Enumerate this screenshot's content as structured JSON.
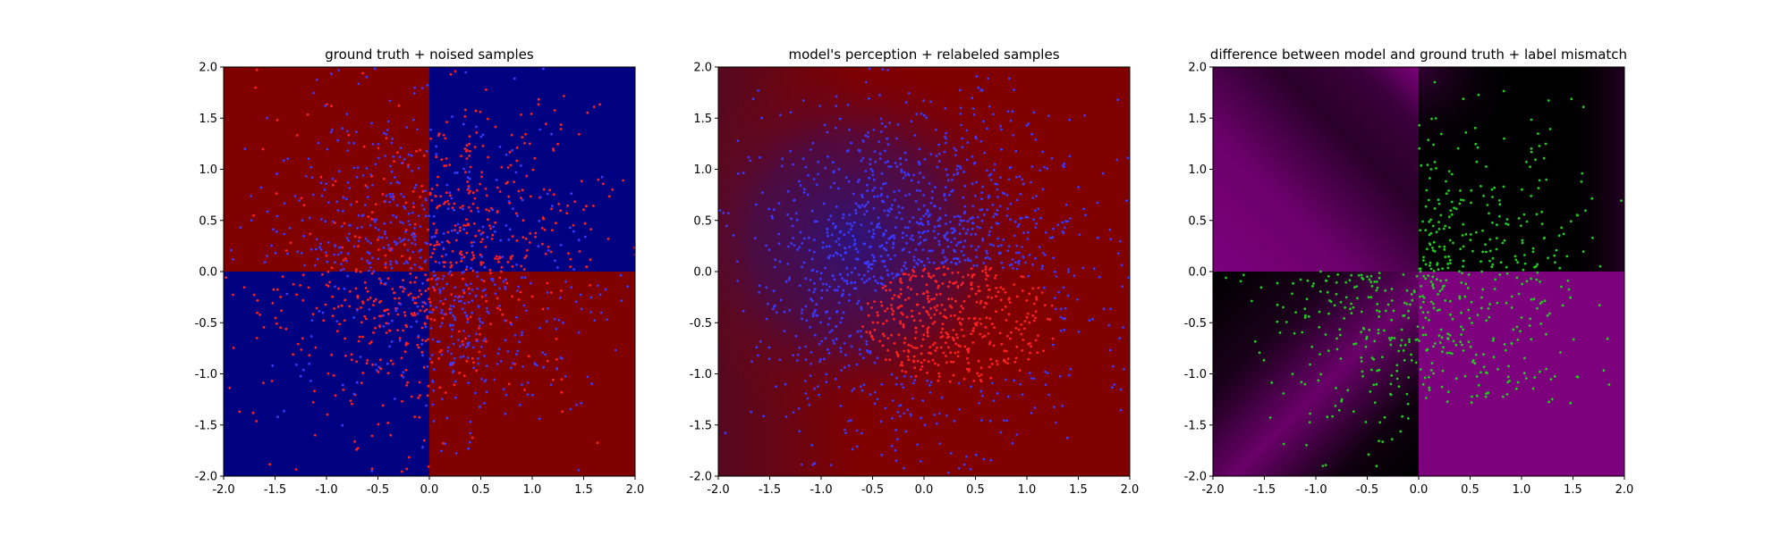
{
  "chart_data": [
    {
      "type": "scatter",
      "title": "ground truth + noised samples",
      "xlim": [
        -2.0,
        2.0
      ],
      "ylim": [
        -2.0,
        2.0
      ],
      "xticks": [
        "-2.0",
        "-1.5",
        "-1.0",
        "-0.5",
        "0.0",
        "0.5",
        "1.0",
        "1.5",
        "2.0"
      ],
      "yticks": [
        "-2.0",
        "-1.5",
        "-1.0",
        "-0.5",
        "0.0",
        "0.5",
        "1.0",
        "1.5",
        "2.0"
      ],
      "background": "xor-quadrant",
      "background_colors": [
        "#000080",
        "#800000"
      ],
      "series": [
        {
          "color": "#ff2020",
          "count": 650,
          "description": "noised samples labeled red"
        },
        {
          "color": "#3a3aff",
          "count": 650,
          "description": "noised samples labeled blue"
        }
      ]
    },
    {
      "type": "scatter",
      "title": "model's perception + relabeled samples",
      "xlim": [
        -2.0,
        2.0
      ],
      "ylim": [
        -2.0,
        2.0
      ],
      "xticks": [
        "-2.0",
        "-1.5",
        "-1.0",
        "-0.5",
        "0.0",
        "0.5",
        "1.0",
        "1.5",
        "2.0"
      ],
      "yticks": [
        "-2.0",
        "-1.5",
        "-1.0",
        "-0.5",
        "0.0",
        "0.5",
        "1.0",
        "1.5",
        "2.0"
      ],
      "background": "model-gradient",
      "background_colors": [
        "#3a0a6a",
        "#800000"
      ],
      "series": [
        {
          "color": "#ff2020",
          "count": 420,
          "description": "relabeled red samples"
        },
        {
          "color": "#3a3aff",
          "count": 1100,
          "description": "relabeled blue samples"
        }
      ]
    },
    {
      "type": "scatter",
      "title": "difference between model and ground truth + label mismatch",
      "xlim": [
        -2.0,
        2.0
      ],
      "ylim": [
        -2.0,
        2.0
      ],
      "xticks": [
        "-2.0",
        "-1.5",
        "-1.0",
        "-0.5",
        "0.0",
        "0.5",
        "1.0",
        "1.5",
        "2.0"
      ],
      "yticks": [
        "-2.0",
        "-1.5",
        "-1.0",
        "-0.5",
        "0.0",
        "0.5",
        "1.0",
        "1.5",
        "2.0"
      ],
      "background": "difference",
      "background_colors": [
        "#7d007d",
        "#000000"
      ],
      "series": [
        {
          "color": "#22cc22",
          "count": 600,
          "description": "label mismatch samples"
        }
      ]
    }
  ]
}
